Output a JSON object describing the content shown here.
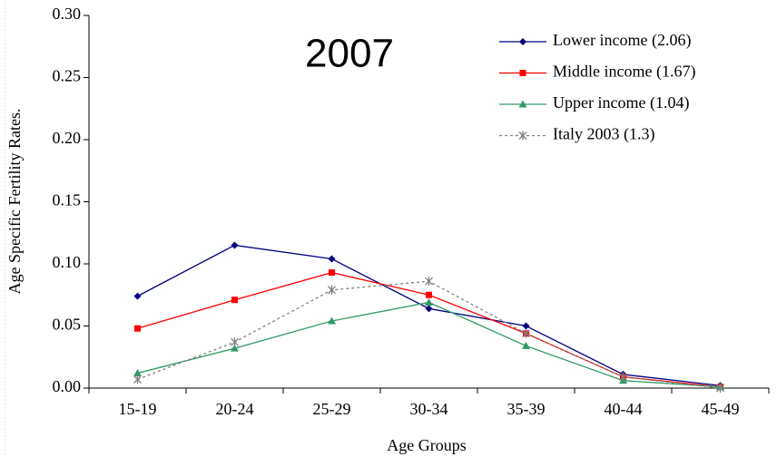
{
  "chart_data": {
    "type": "line",
    "annotation": "2007",
    "x_label": "Age Groups",
    "y_label": "Age Specific Fertility Rates.",
    "categories": [
      "15-19",
      "20-24",
      "25-29",
      "30-34",
      "35-39",
      "40-44",
      "45-49"
    ],
    "ylim": [
      0,
      0.3
    ],
    "yticks": [
      {
        "value": 0,
        "label": "0.00"
      },
      {
        "value": 0.05,
        "label": "0.05"
      },
      {
        "value": 0.1,
        "label": "0.10"
      },
      {
        "value": 0.15,
        "label": "0.15"
      },
      {
        "value": 0.2,
        "label": "0.20"
      },
      {
        "value": 0.25,
        "label": "0.25"
      },
      {
        "value": 0.3,
        "label": "0.30"
      }
    ],
    "grid": false,
    "legend": "upper right",
    "series": [
      {
        "name": "Lower income (2.06)",
        "color": "#000080",
        "marker": "diamond",
        "dash": "solid",
        "values": [
          0.074,
          0.115,
          0.104,
          0.064,
          0.05,
          0.011,
          0.002
        ]
      },
      {
        "name": "Middle income (1.67)",
        "color": "#ff0000",
        "marker": "square",
        "dash": "solid",
        "values": [
          0.048,
          0.071,
          0.093,
          0.075,
          0.044,
          0.009,
          0.001
        ]
      },
      {
        "name": "Upper income (1.04)",
        "color": "#339966",
        "marker": "triangle",
        "dash": "solid",
        "values": [
          0.012,
          0.032,
          0.054,
          0.069,
          0.034,
          0.006,
          0.001
        ]
      },
      {
        "name": "Italy 2003 (1.3)",
        "color": "#808080",
        "marker": "star",
        "dash": "dotted",
        "values": [
          0.007,
          0.037,
          0.079,
          0.086,
          0.044,
          0.009,
          0.0
        ]
      }
    ]
  }
}
